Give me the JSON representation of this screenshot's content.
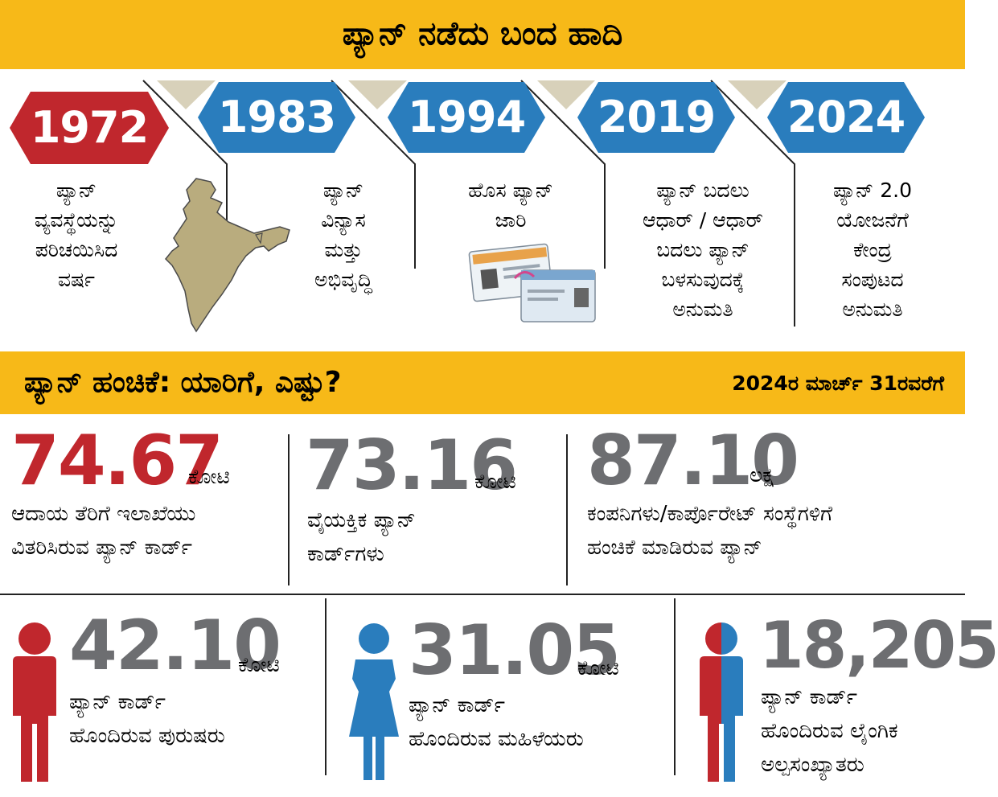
{
  "header": {
    "title": "ಪ್ಯಾನ್ ನಡೆದು ಬಂದ ಹಾದಿ"
  },
  "timeline": [
    {
      "year": "1972",
      "color": "#c0272d",
      "text": [
        "ಪ್ಯಾನ್",
        "ವ್ಯವಸ್ಥೆಯನ್ನು",
        "ಪರಿಚಯಿಸಿದ",
        "ವರ್ಷ"
      ]
    },
    {
      "year": "1983",
      "color": "#2a7dbd",
      "text": [
        "ಪ್ಯಾನ್",
        "ವಿನ್ಯಾಸ",
        "ಮತ್ತು",
        "ಅಭಿವೃದ್ಧಿ"
      ]
    },
    {
      "year": "1994",
      "color": "#2a7dbd",
      "text": [
        "ಹೊಸ ಪ್ಯಾನ್",
        "ಜಾರಿ"
      ]
    },
    {
      "year": "2019",
      "color": "#2a7dbd",
      "text": [
        "ಪ್ಯಾನ್ ಬದಲು",
        "ಆಧಾರ್ / ಆಧಾರ್",
        "ಬದಲು ಪ್ಯಾನ್",
        "ಬಳಸುವುದಕ್ಕೆ",
        "ಅನುಮತಿ"
      ]
    },
    {
      "year": "2024",
      "color": "#2a7dbd",
      "text": [
        "ಪ್ಯಾನ್ 2.0",
        "ಯೋಜನೆಗೆ",
        "ಕೇಂದ್ರ",
        "ಸಂಪುಟದ",
        "ಅನುಮತಿ"
      ]
    }
  ],
  "section": {
    "title": "ಪ್ಯಾನ್ ಹಂಚಿಕೆ: ಯಾರಿಗೆ, ಎಷ್ಟು?",
    "date": "2024ರ ಮಾರ್ಚ್ 31ರವರೆಗೆ"
  },
  "stats_top": [
    {
      "value": "74.67",
      "unit": "ಕೋಟಿ",
      "color": "#c0272d",
      "text": [
        "ಆದಾಯ ತೆರಿಗೆ ಇಲಾಖೆಯು",
        "ವಿತರಿಸಿರುವ ಪ್ಯಾನ್ ಕಾರ್ಡ್"
      ]
    },
    {
      "value": "73.16",
      "unit": "ಕೋಟಿ",
      "color": "#6d6e71",
      "text": [
        "ವೈಯಕ್ತಿಕ ಪ್ಯಾನ್",
        "ಕಾರ್ಡ್‌ಗಳು"
      ]
    },
    {
      "value": "87.10",
      "unit": "ಲಕ್ಷ",
      "color": "#6d6e71",
      "text": [
        "ಕಂಪನಿಗಳು/ಕಾರ್ಪೊರೇಟ್ ಸಂಸ್ಥೆಗಳಿಗೆ",
        "ಹಂಚಿಕೆ ಮಾಡಿರುವ ಪ್ಯಾನ್"
      ]
    }
  ],
  "stats_bottom": [
    {
      "value": "42.10",
      "unit": "ಕೋಟಿ",
      "color": "#6d6e71",
      "icon": "male-figure-icon",
      "icon_color": "#c0272d",
      "text": [
        "ಪ್ಯಾನ್ ಕಾರ್ಡ್",
        "ಹೊಂದಿರುವ ಪುರುಷರು"
      ]
    },
    {
      "value": "31.05",
      "unit": "ಕೋಟಿ",
      "color": "#6d6e71",
      "icon": "female-figure-icon",
      "icon_color": "#2a7dbd",
      "text": [
        "ಪ್ಯಾನ್ ಕಾರ್ಡ್",
        "ಹೊಂದಿರುವ ಮಹಿಳೆಯರು"
      ]
    },
    {
      "value": "18,205",
      "unit": "",
      "color": "#6d6e71",
      "icon": "transgender-figure-icon",
      "icon_color": "#c0272d/#2a7dbd",
      "text": [
        "ಪ್ಯಾನ್ ಕಾರ್ಡ್",
        "ಹೊಂದಿರುವ ಲೈಂಗಿಕ",
        "ಅಲ್ಪಸಂಖ್ಯಾತರು"
      ]
    }
  ],
  "colors": {
    "band": "#f7b918",
    "red": "#c0272d",
    "blue": "#2a7dbd",
    "gray": "#6d6e71",
    "map": "#b9ac7e"
  }
}
